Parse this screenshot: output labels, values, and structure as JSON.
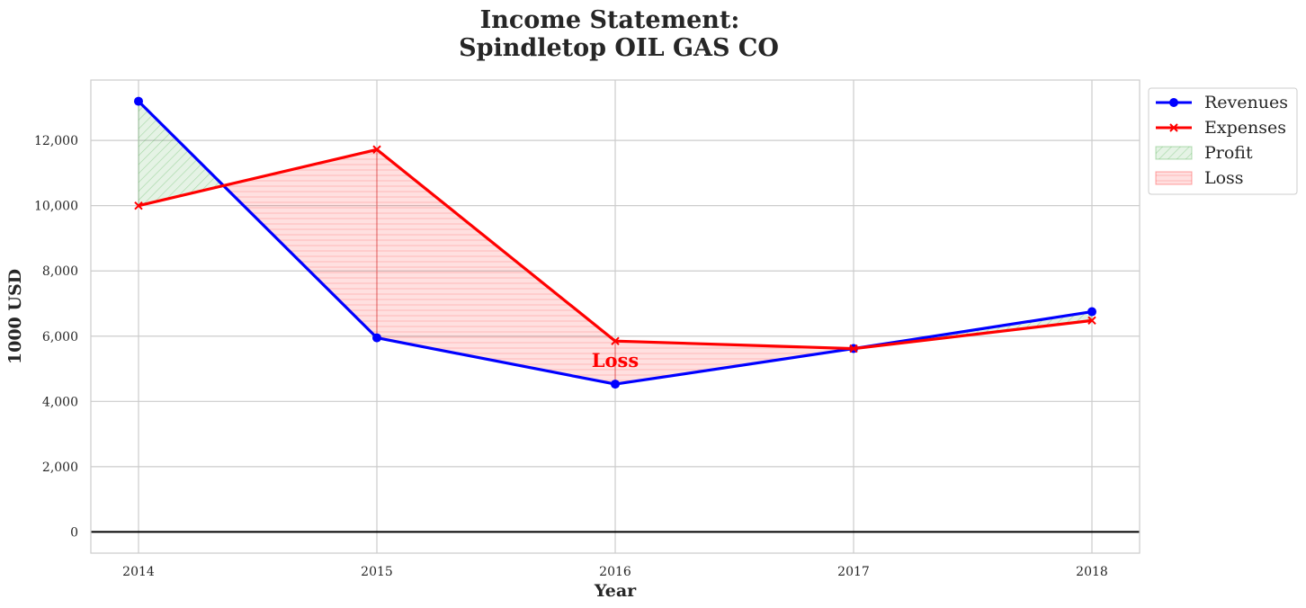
{
  "chart_data": {
    "type": "line",
    "title_line1": "Income Statement:",
    "title_line2": "Spindletop OIL GAS CO",
    "xlabel": "Year",
    "ylabel": "1000 USD",
    "x": [
      2014,
      2015,
      2016,
      2017,
      2018
    ],
    "x_tick_labels": [
      "2014",
      "2015",
      "2016",
      "2017",
      "2018"
    ],
    "series": [
      {
        "name": "Revenues",
        "color": "#0000ff",
        "marker": "circle",
        "values": [
          13200,
          5950,
          4530,
          5620,
          6750
        ]
      },
      {
        "name": "Expenses",
        "color": "#ff0000",
        "marker": "x",
        "values": [
          10000,
          11720,
          5850,
          5620,
          6480
        ]
      }
    ],
    "fills": [
      {
        "name": "Profit",
        "color": "#2ca02c",
        "condition": "revenues >= expenses"
      },
      {
        "name": "Loss",
        "color": "#ff0000",
        "condition": "revenues < expenses"
      }
    ],
    "ylim": [
      -650,
      13850
    ],
    "xlim": [
      2013.8,
      2018.2
    ],
    "y_ticks": [
      0,
      2000,
      4000,
      6000,
      8000,
      10000,
      12000
    ],
    "y_tick_labels": [
      "0",
      "2,000",
      "4,000",
      "6,000",
      "8,000",
      "10,000",
      "12,000"
    ],
    "grid": true,
    "legend_position": "outside-top-right",
    "annotations": [
      {
        "text": "Loss",
        "x": 2016,
        "y": 5050,
        "color": "#ff0000"
      }
    ]
  }
}
